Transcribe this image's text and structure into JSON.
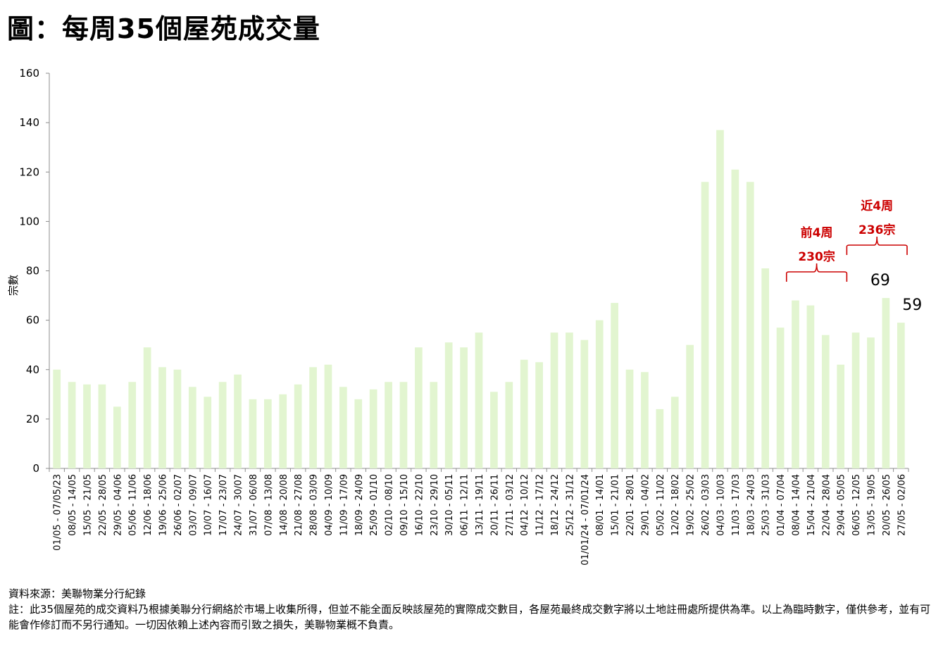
{
  "title": "圖：每周35個屋苑成交量",
  "chart_data": {
    "type": "bar",
    "title": "圖：每周35個屋苑成交量",
    "ylabel": "宗數",
    "xlabel": "",
    "ylim": [
      0,
      160
    ],
    "yticks": [
      0,
      20,
      40,
      60,
      80,
      100,
      120,
      140,
      160
    ],
    "grid": false,
    "bar_color": "#e2f5d0",
    "categories": [
      "01/05 - 07/05/23",
      "08/05 - 14/05",
      "15/05 - 21/05",
      "22/05 - 28/05",
      "29/05 - 04/06",
      "05/06 - 11/06",
      "12/06 - 18/06",
      "19/06 - 25/06",
      "26/06 - 02/07",
      "03/07 - 09/07",
      "10/07 - 16/07",
      "17/07 - 23/07",
      "24/07 - 30/07",
      "31/07 - 06/08",
      "07/08 - 13/08",
      "14/08 - 20/08",
      "21/08 - 27/08",
      "28/08 - 03/09",
      "04/09 - 10/09",
      "11/09 - 17/09",
      "18/09 - 24/09",
      "25/09 - 01/10",
      "02/10 - 08/10",
      "09/10 - 15/10",
      "16/10 - 22/10",
      "23/10 - 29/10",
      "30/10 - 05/11",
      "06/11 - 12/11",
      "13/11 - 19/11",
      "20/11 - 26/11",
      "27/11 - 03/12",
      "04/12 - 10/12",
      "11/12 - 17/12",
      "18/12 - 24/12",
      "25/12 - 31/12",
      "01/01/24 - 07/01/24",
      "08/01 - 14/01",
      "15/01 - 21/01",
      "22/01 - 28/01",
      "29/01 - 04/02",
      "05/02 - 11/02",
      "12/02 - 18/02",
      "19/02 - 25/02",
      "26/02 - 03/03",
      "04/03 - 10/03",
      "11/03 - 17/03",
      "18/03 - 24/03",
      "25/03 - 31/03",
      "01/04 - 07/04",
      "08/04 - 14/04",
      "15/04 - 21/04",
      "22/04 - 28/04",
      "29/04 - 05/05",
      "06/05 - 12/05",
      "13/05 - 19/05",
      "20/05 - 26/05",
      "27/05 - 02/06"
    ],
    "values": [
      40,
      35,
      34,
      34,
      25,
      35,
      49,
      41,
      40,
      33,
      29,
      35,
      38,
      28,
      28,
      30,
      34,
      41,
      42,
      33,
      28,
      32,
      35,
      35,
      49,
      35,
      51,
      49,
      55,
      31,
      35,
      44,
      43,
      55,
      55,
      52,
      60,
      67,
      40,
      39,
      24,
      29,
      50,
      116,
      137,
      121,
      116,
      81,
      57,
      68,
      66,
      54,
      42,
      55,
      53,
      69,
      59
    ],
    "data_labels": [
      {
        "index": 55,
        "text": "69"
      },
      {
        "index": 56,
        "text": "59"
      }
    ],
    "annotations": [
      {
        "from_index": 49,
        "to_index": 52,
        "line1": "前4周",
        "line2": "230宗",
        "color": "#cc0000"
      },
      {
        "from_index": 53,
        "to_index": 56,
        "line1": "近4周",
        "line2": "236宗",
        "color": "#cc0000"
      }
    ]
  },
  "source": "資料來源：美聯物業分行紀錄",
  "note": "註：此35個屋苑的成交資料乃根據美聯分行網絡於市場上收集所得，但並不能全面反映該屋苑的實際成交數目，各屋苑最終成交數字將以土地註冊處所提供為準。以上為臨時數字，僅供參考，並有可能會作修訂而不另行通知。一切因依賴上述內容而引致之損失，美聯物業概不負責。"
}
